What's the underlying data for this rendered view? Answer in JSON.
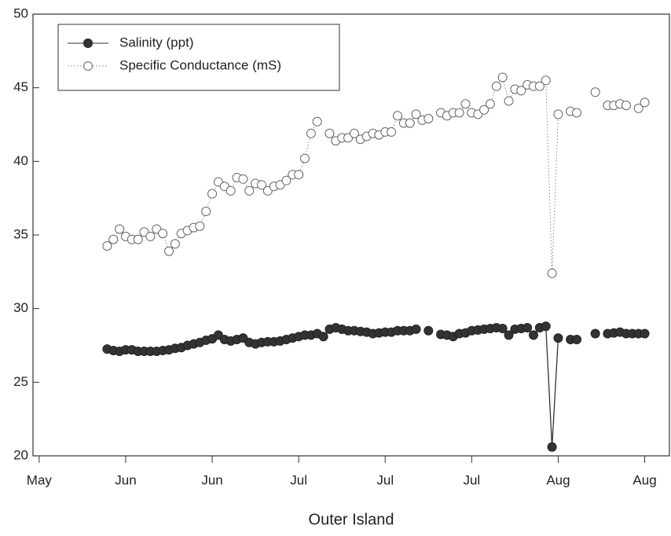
{
  "chart_data": {
    "type": "line",
    "xlabel": "Outer Island",
    "x": [
      11,
      12,
      13,
      14,
      15,
      16,
      17,
      18,
      19,
      20,
      21,
      22,
      23,
      24,
      25,
      26,
      27,
      28,
      29,
      30,
      31,
      32,
      33,
      34,
      35,
      36,
      37,
      38,
      39,
      40,
      41,
      42,
      43,
      44,
      45,
      46,
      47,
      48,
      49,
      50,
      51,
      52,
      53,
      54,
      55,
      56,
      57,
      58,
      59,
      60,
      61,
      62,
      63,
      64,
      65,
      66,
      67,
      68,
      69,
      70,
      71,
      72,
      73,
      74,
      75,
      76,
      77,
      78,
      79,
      80,
      81,
      82,
      83,
      84,
      85,
      86,
      87,
      88,
      89,
      90,
      91,
      92,
      93,
      94,
      95,
      96,
      97,
      98
    ],
    "series": [
      {
        "name": "Salinity (ppt)",
        "color": "#333333",
        "marker": "filled",
        "line": "solid",
        "values": [
          27.25,
          27.15,
          27.1,
          27.2,
          27.2,
          27.1,
          27.1,
          27.1,
          27.1,
          27.15,
          27.2,
          27.3,
          27.35,
          27.5,
          27.6,
          27.7,
          27.85,
          27.95,
          28.2,
          27.9,
          27.8,
          27.9,
          28.0,
          27.7,
          27.6,
          27.7,
          27.75,
          27.75,
          27.8,
          27.9,
          28.0,
          28.1,
          28.2,
          28.2,
          28.3,
          28.1,
          28.6,
          28.7,
          28.6,
          28.5,
          28.5,
          28.45,
          28.4,
          28.3,
          28.35,
          28.4,
          28.4,
          28.5,
          28.5,
          28.5,
          28.6,
          null,
          28.5,
          null,
          28.25,
          28.2,
          28.1,
          28.3,
          28.35,
          28.5,
          28.55,
          28.6,
          28.65,
          28.7,
          28.65,
          28.2,
          28.6,
          28.65,
          28.7,
          28.2,
          28.7,
          28.8,
          20.6,
          28.0,
          null,
          27.9,
          27.9,
          null,
          null,
          28.3,
          null,
          28.3,
          28.35,
          28.4,
          28.3,
          28.3,
          28.3,
          28.3
        ]
      },
      {
        "name": "Specific Conductance (mS)",
        "color": "#888888",
        "marker": "open",
        "line": "dotted",
        "values": [
          34.25,
          34.7,
          35.4,
          34.9,
          34.7,
          34.7,
          35.2,
          34.9,
          35.4,
          35.1,
          33.9,
          34.4,
          35.1,
          35.3,
          35.5,
          35.6,
          36.6,
          37.8,
          38.6,
          38.3,
          38.0,
          38.9,
          38.8,
          38.0,
          38.5,
          38.4,
          38.0,
          38.3,
          38.4,
          38.7,
          39.1,
          39.1,
          40.2,
          41.9,
          42.7,
          null,
          41.9,
          41.4,
          41.6,
          41.6,
          41.9,
          41.5,
          41.7,
          41.9,
          41.8,
          42.0,
          42.0,
          43.1,
          42.6,
          42.6,
          43.2,
          42.8,
          42.9,
          null,
          43.3,
          43.1,
          43.3,
          43.3,
          43.9,
          43.3,
          43.2,
          43.5,
          43.9,
          45.1,
          45.7,
          44.1,
          44.9,
          44.8,
          45.2,
          45.1,
          45.1,
          45.5,
          32.4,
          43.2,
          null,
          43.4,
          43.3,
          null,
          null,
          44.7,
          null,
          43.8,
          43.8,
          43.9,
          43.8,
          null,
          43.6,
          44.0
        ]
      }
    ],
    "xlim": [
      -1,
      102
    ],
    "xticks": [
      {
        "value": 0,
        "label": "May"
      },
      {
        "value": 14,
        "label": "Jun"
      },
      {
        "value": 28,
        "label": "Jun"
      },
      {
        "value": 42,
        "label": "Jul"
      },
      {
        "value": 56,
        "label": "Jul"
      },
      {
        "value": 70,
        "label": "Jul"
      },
      {
        "value": 84,
        "label": "Aug"
      },
      {
        "value": 98,
        "label": "Aug"
      }
    ],
    "ylim": [
      20,
      50
    ],
    "yticks": [
      20,
      25,
      30,
      35,
      40,
      45,
      50
    ],
    "legend": "upper left"
  }
}
